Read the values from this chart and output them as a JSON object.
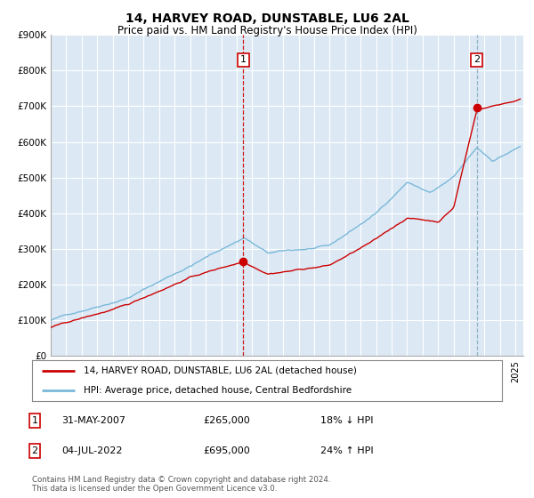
{
  "title": "14, HARVEY ROAD, DUNSTABLE, LU6 2AL",
  "subtitle": "Price paid vs. HM Land Registry's House Price Index (HPI)",
  "title_fontsize": 10,
  "subtitle_fontsize": 8.5,
  "background_color": "#ffffff",
  "plot_bg_color": "#dce9f5",
  "grid_color": "#ffffff",
  "ylim": [
    0,
    900000
  ],
  "yticks": [
    0,
    100000,
    200000,
    300000,
    400000,
    500000,
    600000,
    700000,
    800000,
    900000
  ],
  "hpi_color": "#7ab8d9",
  "price_color": "#cc0000",
  "sale1_date_num": 2007.42,
  "sale1_price": 265000,
  "sale1_label": "1",
  "sale2_date_num": 2022.5,
  "sale2_price": 695000,
  "sale2_label": "2",
  "legend_entries": [
    "14, HARVEY ROAD, DUNSTABLE, LU6 2AL (detached house)",
    "HPI: Average price, detached house, Central Bedfordshire"
  ],
  "footnote": "Contains HM Land Registry data © Crown copyright and database right 2024.\nThis data is licensed under the Open Government Licence v3.0.",
  "xmin": 1995.0,
  "xmax": 2025.5
}
